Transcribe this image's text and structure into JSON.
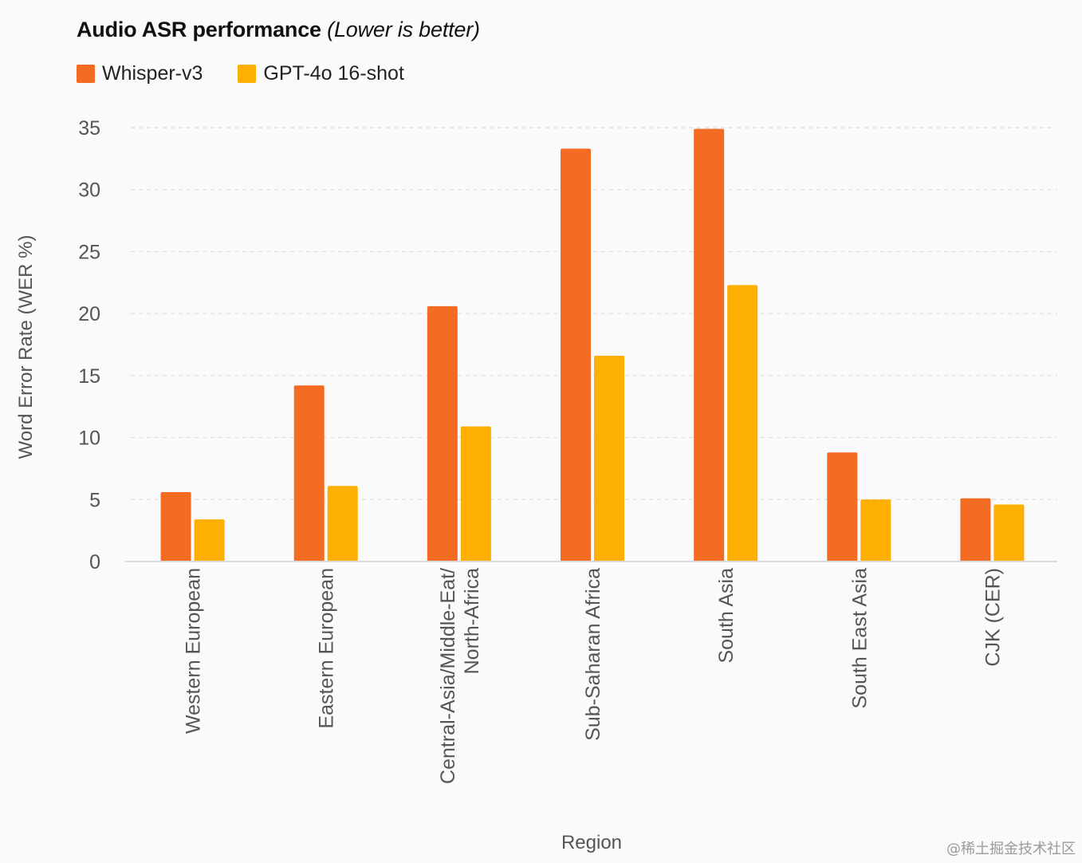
{
  "title": "Audio ASR performance",
  "subtitle": "(Lower is better)",
  "watermark": "@稀土掘金技术社区",
  "colors": {
    "whisper": "#f46b23",
    "gpt4o": "#fdb001",
    "grid": "#dedede",
    "axis": "#dadada",
    "tick_text": "#555555"
  },
  "legend": [
    {
      "label": "Whisper-v3",
      "color": "#f46b23"
    },
    {
      "label": "GPT-4o 16-shot",
      "color": "#fdb001"
    }
  ],
  "chart_data": {
    "type": "bar",
    "title": "Audio ASR performance (Lower is better)",
    "xlabel": "Region",
    "ylabel": "Word Error Rate (WER %)",
    "ylim": [
      0,
      35
    ],
    "yticks": [
      0,
      5,
      10,
      15,
      20,
      25,
      30,
      35
    ],
    "grid": true,
    "legend_position": "top-left",
    "categories": [
      [
        "Western European"
      ],
      [
        "Eastern European"
      ],
      [
        "Central-Asia/Middle-Eat/",
        "North-Africa"
      ],
      [
        "Sub-Saharan Africa"
      ],
      [
        "South Asia"
      ],
      [
        "South East Asia"
      ],
      [
        "CJK (CER)"
      ]
    ],
    "series": [
      {
        "name": "Whisper-v3",
        "color": "#f46b23",
        "values": [
          5.6,
          14.2,
          20.6,
          33.3,
          34.9,
          8.8,
          5.1
        ]
      },
      {
        "name": "GPT-4o 16-shot",
        "color": "#fdb001",
        "values": [
          3.4,
          6.1,
          10.9,
          16.6,
          22.3,
          5.0,
          4.6
        ]
      }
    ]
  }
}
